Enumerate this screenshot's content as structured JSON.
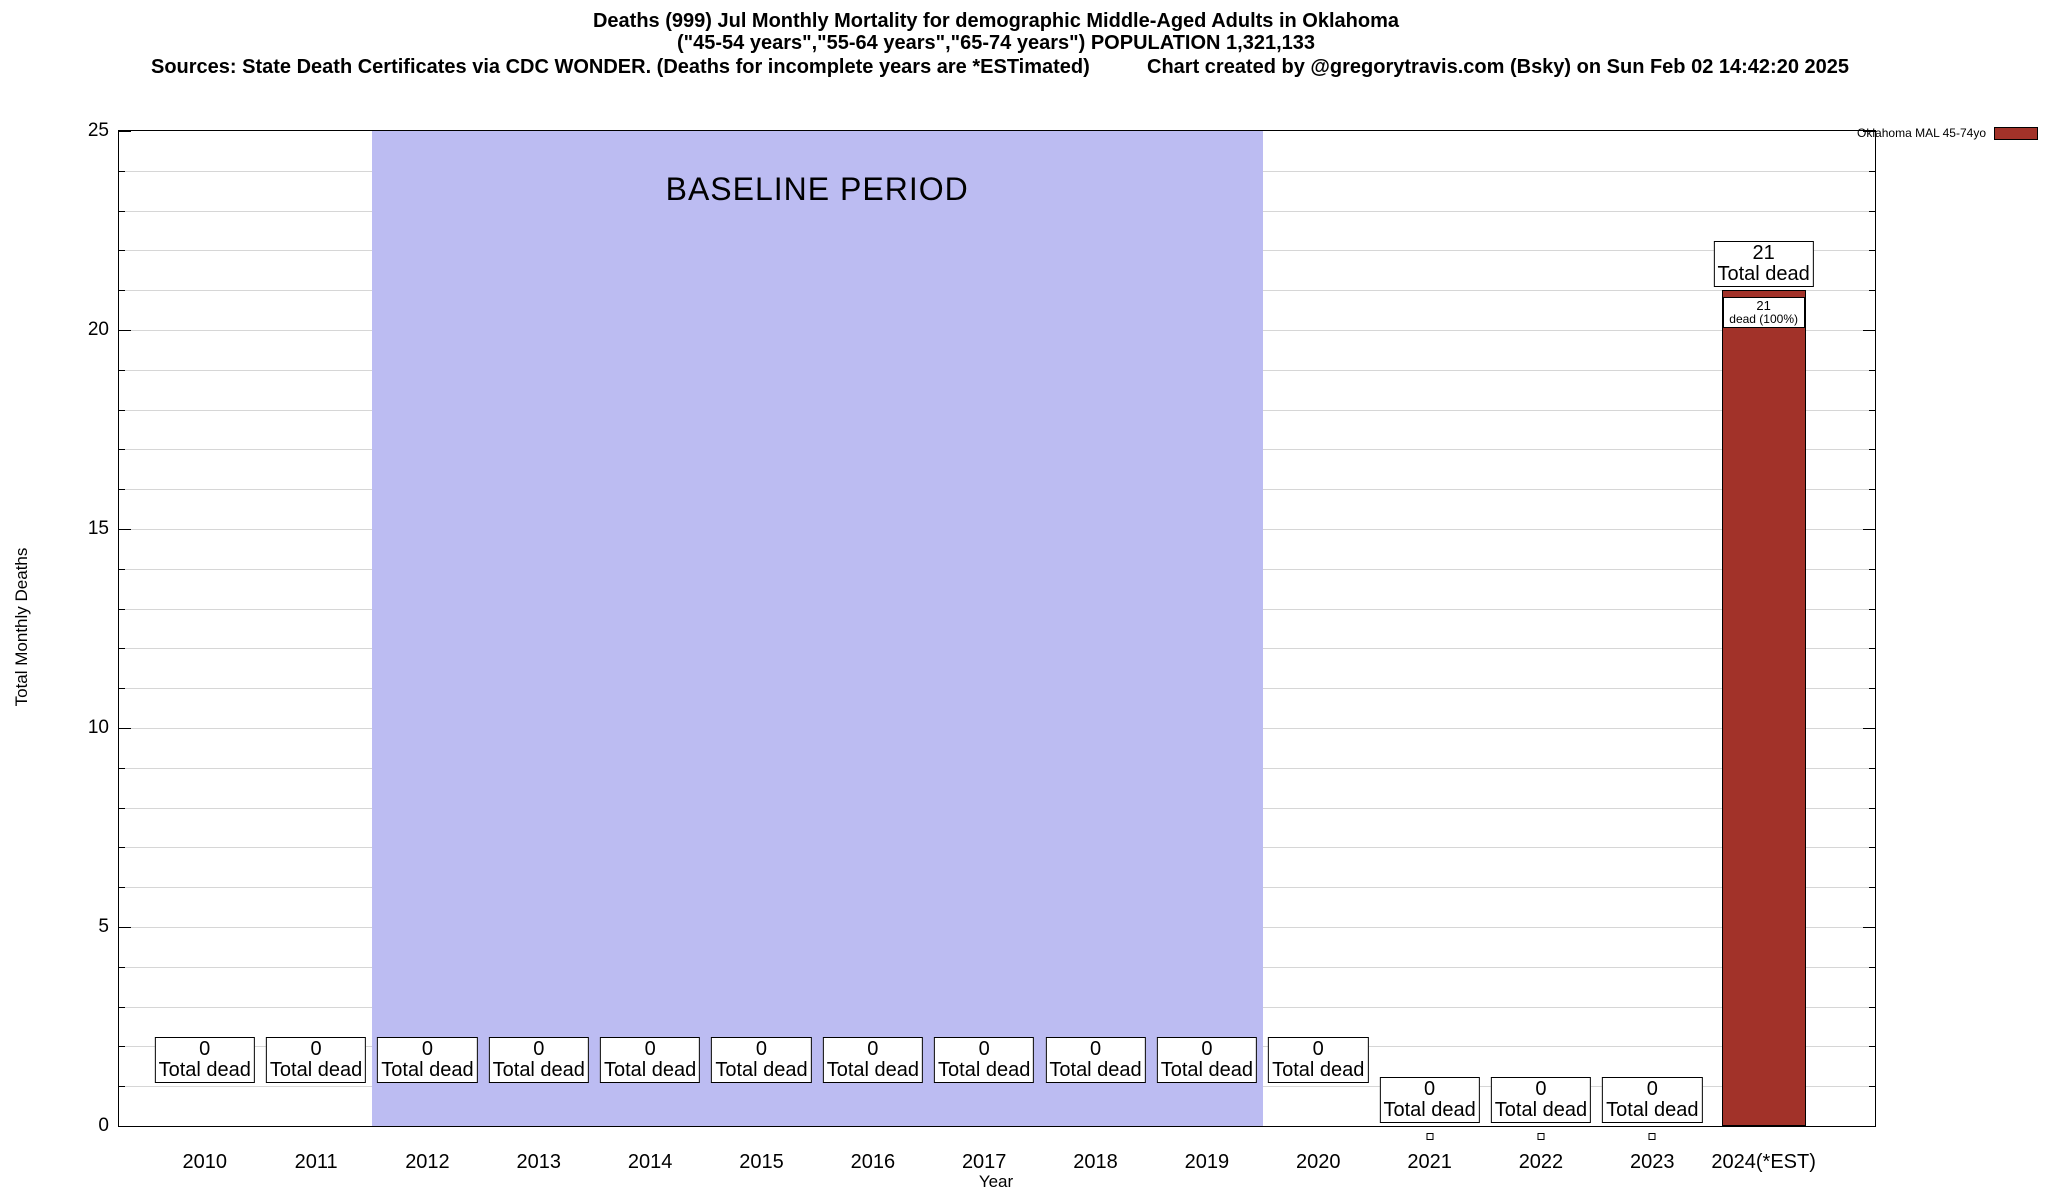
{
  "header": {
    "title_line1": "Deaths (999) Jul Monthly Mortality for demographic Middle-Aged Adults in Oklahoma",
    "title_line2": "(\"45-54 years\",\"55-64 years\",\"65-74 years\") POPULATION 1,321,133",
    "sources": "Sources: State Death Certificates via CDC WONDER. (Deaths for incomplete years are *ESTimated)",
    "credit": "Chart created by @gregorytravis.com (Bsky) on Sun Feb 02 14:42:20 2025"
  },
  "legend": {
    "label": "Oklahoma MAL 45-74yo",
    "color": "#a23229"
  },
  "chart_data": {
    "type": "bar",
    "title": "Deaths (999) Jul Monthly Mortality for demographic Middle-Aged Adults in Oklahoma",
    "subtitle": "(\"45-54 years\",\"55-64 years\",\"65-74 years\") POPULATION 1,321,133",
    "categories": [
      "2010",
      "2011",
      "2012",
      "2013",
      "2014",
      "2015",
      "2016",
      "2017",
      "2018",
      "2019",
      "2020",
      "2021",
      "2022",
      "2023",
      "2024(*EST)"
    ],
    "series": [
      {
        "name": "Oklahoma MAL 45-74yo",
        "color": "#a23229",
        "values": [
          0,
          0,
          0,
          0,
          0,
          0,
          0,
          0,
          0,
          0,
          0,
          0,
          0,
          0,
          21
        ]
      }
    ],
    "xlabel": "Year",
    "ylabel": "Total Monthly Deaths",
    "ylim": [
      0,
      25
    ],
    "yticks": [
      0,
      5,
      10,
      15,
      20,
      25
    ],
    "grid": "horizontal every 1 unit",
    "legend_position": "top-right",
    "baseline_band": {
      "label": "BASELINE PERIOD",
      "from": "2012",
      "to": "2019",
      "color": "#bcbcf2"
    },
    "bar_annotations": [
      {
        "year": "2010",
        "value": 0,
        "box_lines": [
          "0",
          "Total dead"
        ],
        "box_center_value": 1.65,
        "zero_marker": false
      },
      {
        "year": "2011",
        "value": 0,
        "box_lines": [
          "0",
          "Total dead"
        ],
        "box_center_value": 1.65,
        "zero_marker": false
      },
      {
        "year": "2012",
        "value": 0,
        "box_lines": [
          "0",
          "Total dead"
        ],
        "box_center_value": 1.65,
        "zero_marker": false
      },
      {
        "year": "2013",
        "value": 0,
        "box_lines": [
          "0",
          "Total dead"
        ],
        "box_center_value": 1.65,
        "zero_marker": false
      },
      {
        "year": "2014",
        "value": 0,
        "box_lines": [
          "0",
          "Total dead"
        ],
        "box_center_value": 1.65,
        "zero_marker": false
      },
      {
        "year": "2015",
        "value": 0,
        "box_lines": [
          "0",
          "Total dead"
        ],
        "box_center_value": 1.65,
        "zero_marker": false
      },
      {
        "year": "2016",
        "value": 0,
        "box_lines": [
          "0",
          "Total dead"
        ],
        "box_center_value": 1.65,
        "zero_marker": false
      },
      {
        "year": "2017",
        "value": 0,
        "box_lines": [
          "0",
          "Total dead"
        ],
        "box_center_value": 1.65,
        "zero_marker": false
      },
      {
        "year": "2018",
        "value": 0,
        "box_lines": [
          "0",
          "Total dead"
        ],
        "box_center_value": 1.65,
        "zero_marker": false
      },
      {
        "year": "2019",
        "value": 0,
        "box_lines": [
          "0",
          "Total dead"
        ],
        "box_center_value": 1.65,
        "zero_marker": false
      },
      {
        "year": "2020",
        "value": 0,
        "box_lines": [
          "0",
          "Total dead"
        ],
        "box_center_value": 1.65,
        "zero_marker": false
      },
      {
        "year": "2021",
        "value": 0,
        "box_lines": [
          "0",
          "Total dead"
        ],
        "box_center_value": 0.65,
        "zero_marker": true
      },
      {
        "year": "2022",
        "value": 0,
        "box_lines": [
          "0",
          "Total dead"
        ],
        "box_center_value": 0.65,
        "zero_marker": true
      },
      {
        "year": "2023",
        "value": 0,
        "box_lines": [
          "0",
          "Total dead"
        ],
        "box_center_value": 0.65,
        "zero_marker": true
      },
      {
        "year": "2024(*EST)",
        "value": 21,
        "box_lines": [
          "21",
          "Total dead"
        ],
        "box_center_value": 21.65,
        "zero_marker": false,
        "inner_label": [
          "21",
          "dead (100%)"
        ]
      }
    ]
  }
}
